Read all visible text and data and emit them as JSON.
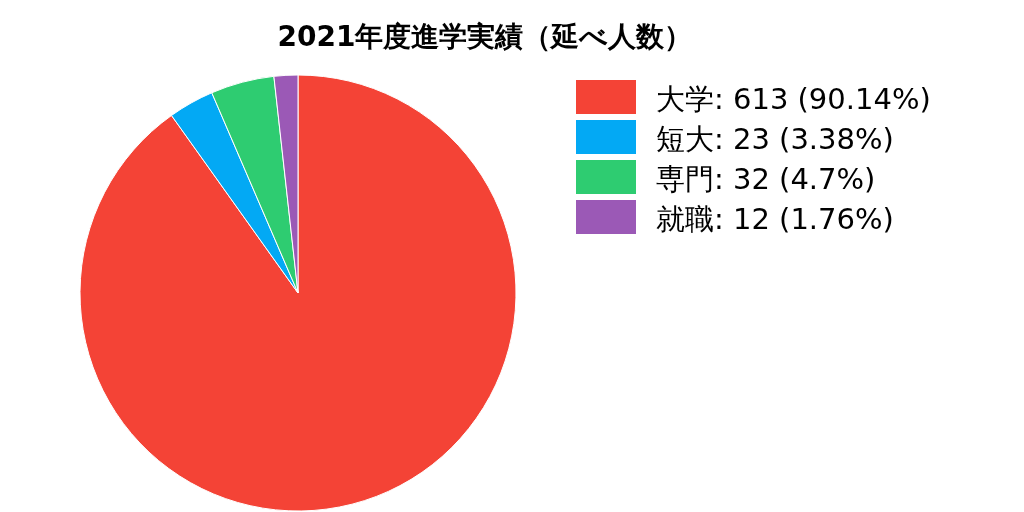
{
  "chart_data": {
    "type": "pie",
    "title": "2021年度進学実績（延べ人数）",
    "categories": [
      "大学",
      "短大",
      "専門",
      "就職"
    ],
    "values": [
      613,
      23,
      32,
      12
    ],
    "value_labels": [
      "613 (90.14%)",
      "23 (3.38%)",
      "32 (4.7%)",
      "12 (1.76%)"
    ],
    "colors": [
      "#f44336",
      "#03a9f4",
      "#2ecc71",
      "#9b59b6"
    ],
    "legend": "right"
  }
}
